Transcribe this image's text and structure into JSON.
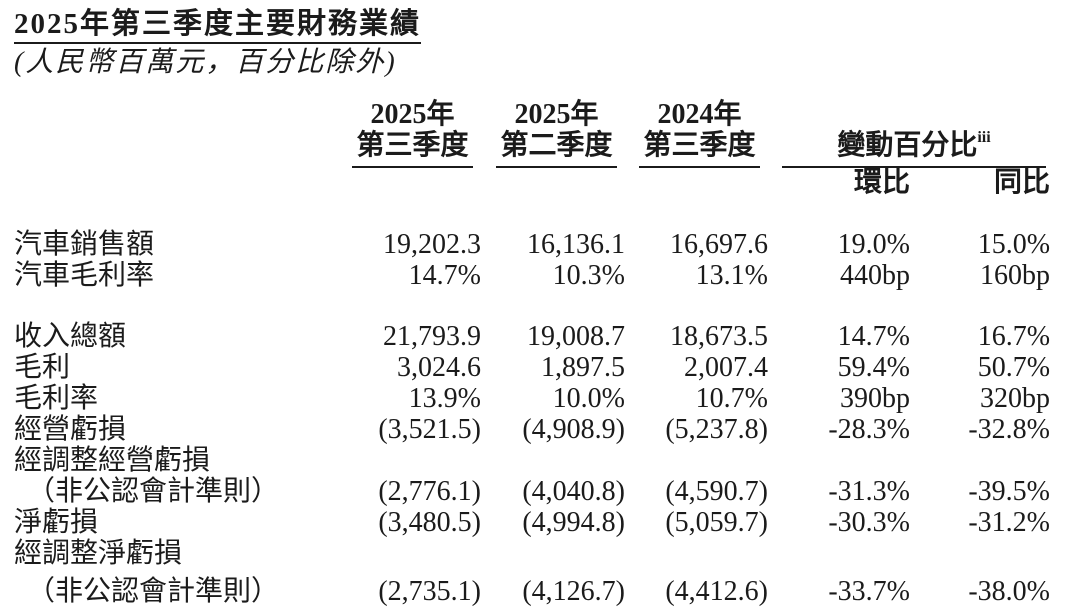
{
  "page": {
    "title": "2025年第三季度主要財務業績",
    "subtitle": "(人民幣百萬元，百分比除外)"
  },
  "table": {
    "column_headers": [
      {
        "line1": "2025年",
        "line2": "第三季度"
      },
      {
        "line1": "2025年",
        "line2": "第二季度"
      },
      {
        "line1": "2024年",
        "line2": "第三季度"
      }
    ],
    "change_group": {
      "label": "變動百分比",
      "superscript": "iii",
      "sub_columns": [
        "環比",
        "同比"
      ]
    },
    "rows": [
      {
        "label": "汽車銷售額",
        "values": [
          "19,202.3",
          "16,136.1",
          "16,697.6",
          "19.0%",
          "15.0%"
        ]
      },
      {
        "label": "汽車毛利率",
        "values": [
          "14.7%",
          "10.3%",
          "13.1%",
          "440bp",
          "160bp"
        ]
      },
      {
        "spacer": true
      },
      {
        "label": "收入總額",
        "values": [
          "21,793.9",
          "19,008.7",
          "18,673.5",
          "14.7%",
          "16.7%"
        ]
      },
      {
        "label": "毛利",
        "values": [
          "3,024.6",
          "1,897.5",
          "2,007.4",
          "59.4%",
          "50.7%"
        ]
      },
      {
        "label": "毛利率",
        "values": [
          "13.9%",
          "10.0%",
          "10.7%",
          "390bp",
          "320bp"
        ]
      },
      {
        "label": "經營虧損",
        "values": [
          "(3,521.5)",
          "(4,908.9)",
          "(5,237.8)",
          "-28.3%",
          "-32.8%"
        ]
      },
      {
        "label": "經調整經營虧損",
        "values": [
          "",
          "",
          "",
          "",
          ""
        ]
      },
      {
        "label": "（非公認會計準則）",
        "indent": true,
        "values": [
          "(2,776.1)",
          "(4,040.8)",
          "(4,590.7)",
          "-31.3%",
          "-39.5%"
        ]
      },
      {
        "label": "淨虧損",
        "values": [
          "(3,480.5)",
          "(4,994.8)",
          "(5,059.7)",
          "-30.3%",
          "-31.2%"
        ]
      },
      {
        "label": "經調整淨虧損",
        "values": [
          "",
          "",
          "",
          "",
          ""
        ]
      },
      {
        "label": "（非公認會計準則）",
        "indent": true,
        "extra_gap": true,
        "values": [
          "(2,735.1)",
          "(4,126.7)",
          "(4,412.6)",
          "-33.7%",
          "-38.0%"
        ]
      }
    ]
  },
  "colors": {
    "text": "#1b1b1b",
    "rule": "#1b1b1b",
    "background": "#ffffff"
  }
}
